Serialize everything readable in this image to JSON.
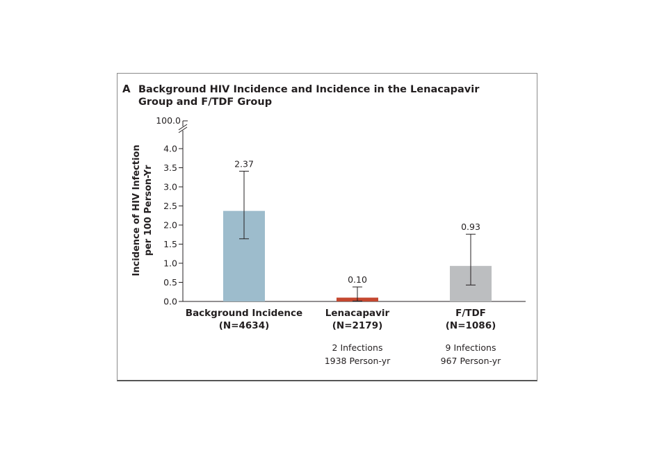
{
  "panel": {
    "letter": "A",
    "title": "Background HIV Incidence and Incidence in the Lenacapavir Group and F/TDF Group"
  },
  "chart_data": {
    "type": "bar",
    "title": "Background HIV Incidence and Incidence in the Lenacapavir Group and F/TDF Group",
    "ylabel": [
      "Incidence of HIV Infection",
      "per 100 Person-Yr"
    ],
    "xlabel": "",
    "ylim": [
      0,
      4.0
    ],
    "axis_break_top_tick": "100.0",
    "yticks": [
      "0.0",
      "0.5",
      "1.0",
      "1.5",
      "2.0",
      "2.5",
      "3.0",
      "3.5",
      "4.0"
    ],
    "grid": false,
    "categories": [
      {
        "name": "Background Incidence",
        "n": "(N=4634)",
        "notes": []
      },
      {
        "name": "Lenacapavir",
        "n": "(N=2179)",
        "notes": [
          "2 Infections",
          "1938 Person-yr"
        ]
      },
      {
        "name": "F/TDF",
        "n": "(N=1086)",
        "notes": [
          "9 Infections",
          "967 Person-yr"
        ]
      }
    ],
    "values": [
      2.37,
      0.1,
      0.93
    ],
    "value_labels": [
      "2.37",
      "0.10",
      "0.93"
    ],
    "error_low": [
      1.64,
      0.01,
      0.43
    ],
    "error_high": [
      3.41,
      0.38,
      1.76
    ],
    "colors": [
      "#9dbccc",
      "#c4472f",
      "#bcbec0"
    ]
  }
}
